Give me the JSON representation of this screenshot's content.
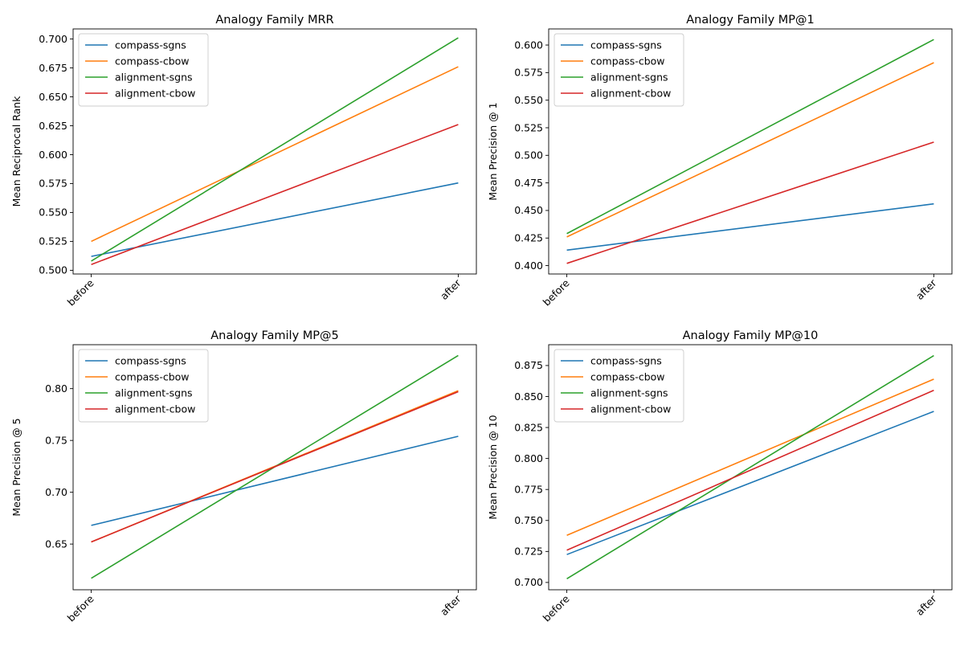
{
  "chart_data": [
    {
      "type": "line",
      "title": "Analogy Family MRR",
      "xlabel": "",
      "ylabel": "Mean Reciprocal Rank",
      "categories": [
        "before",
        "after"
      ],
      "ylim": [
        0.4968,
        0.7087
      ],
      "yticks": [
        0.5,
        0.525,
        0.55,
        0.575,
        0.6,
        0.625,
        0.65,
        0.675,
        0.7
      ],
      "ytick_labels": [
        "0.500",
        "0.525",
        "0.550",
        "0.575",
        "0.600",
        "0.625",
        "0.650",
        "0.675",
        "0.700"
      ],
      "legend": "top-left",
      "grid": false,
      "series": [
        {
          "name": "compass-sgns",
          "color": "#1f77b4",
          "values": [
            0.512,
            0.5755
          ]
        },
        {
          "name": "compass-cbow",
          "color": "#ff7f0e",
          "values": [
            0.525,
            0.676
          ]
        },
        {
          "name": "alignment-sgns",
          "color": "#2ca02c",
          "values": [
            0.508,
            0.701
          ]
        },
        {
          "name": "alignment-cbow",
          "color": "#d62728",
          "values": [
            0.505,
            0.626
          ]
        }
      ]
    },
    {
      "type": "line",
      "title": "Analogy Family MP@1",
      "xlabel": "",
      "ylabel": "Mean Precision @ 1",
      "categories": [
        "before",
        "after"
      ],
      "ylim": [
        0.3924,
        0.6146
      ],
      "yticks": [
        0.4,
        0.425,
        0.45,
        0.475,
        0.5,
        0.525,
        0.55,
        0.575,
        0.6
      ],
      "ytick_labels": [
        "0.400",
        "0.425",
        "0.450",
        "0.475",
        "0.500",
        "0.525",
        "0.550",
        "0.575",
        "0.600"
      ],
      "legend": "top-left",
      "grid": false,
      "series": [
        {
          "name": "compass-sgns",
          "color": "#1f77b4",
          "values": [
            0.414,
            0.456
          ]
        },
        {
          "name": "compass-cbow",
          "color": "#ff7f0e",
          "values": [
            0.426,
            0.584
          ]
        },
        {
          "name": "alignment-sgns",
          "color": "#2ca02c",
          "values": [
            0.429,
            0.605
          ]
        },
        {
          "name": "alignment-cbow",
          "color": "#d62728",
          "values": [
            0.402,
            0.512
          ]
        }
      ]
    },
    {
      "type": "line",
      "title": "Analogy Family MP@5",
      "xlabel": "",
      "ylabel": "Mean Precision @ 5",
      "categories": [
        "before",
        "after"
      ],
      "ylim": [
        0.6059,
        0.8424
      ],
      "yticks": [
        0.65,
        0.7,
        0.75,
        0.8
      ],
      "ytick_labels": [
        "0.65",
        "0.70",
        "0.75",
        "0.80"
      ],
      "legend": "top-left",
      "grid": false,
      "series": [
        {
          "name": "compass-sgns",
          "color": "#1f77b4",
          "values": [
            0.668,
            0.754
          ]
        },
        {
          "name": "compass-cbow",
          "color": "#ff7f0e",
          "values": [
            0.652,
            0.798
          ]
        },
        {
          "name": "alignment-sgns",
          "color": "#2ca02c",
          "values": [
            0.617,
            0.832
          ]
        },
        {
          "name": "alignment-cbow",
          "color": "#d62728",
          "values": [
            0.652,
            0.797
          ]
        }
      ]
    },
    {
      "type": "line",
      "title": "Analogy Family MP@10",
      "xlabel": "",
      "ylabel": "Mean Precision @ 10",
      "categories": [
        "before",
        "after"
      ],
      "ylim": [
        0.6941,
        0.8918
      ],
      "yticks": [
        0.7,
        0.725,
        0.75,
        0.775,
        0.8,
        0.825,
        0.85,
        0.875
      ],
      "ytick_labels": [
        "0.700",
        "0.725",
        "0.750",
        "0.775",
        "0.800",
        "0.825",
        "0.850",
        "0.875"
      ],
      "legend": "top-left",
      "grid": false,
      "series": [
        {
          "name": "compass-sgns",
          "color": "#1f77b4",
          "values": [
            0.7225,
            0.838
          ]
        },
        {
          "name": "compass-cbow",
          "color": "#ff7f0e",
          "values": [
            0.738,
            0.864
          ]
        },
        {
          "name": "alignment-sgns",
          "color": "#2ca02c",
          "values": [
            0.703,
            0.883
          ]
        },
        {
          "name": "alignment-cbow",
          "color": "#d62728",
          "values": [
            0.726,
            0.855
          ]
        }
      ]
    }
  ]
}
